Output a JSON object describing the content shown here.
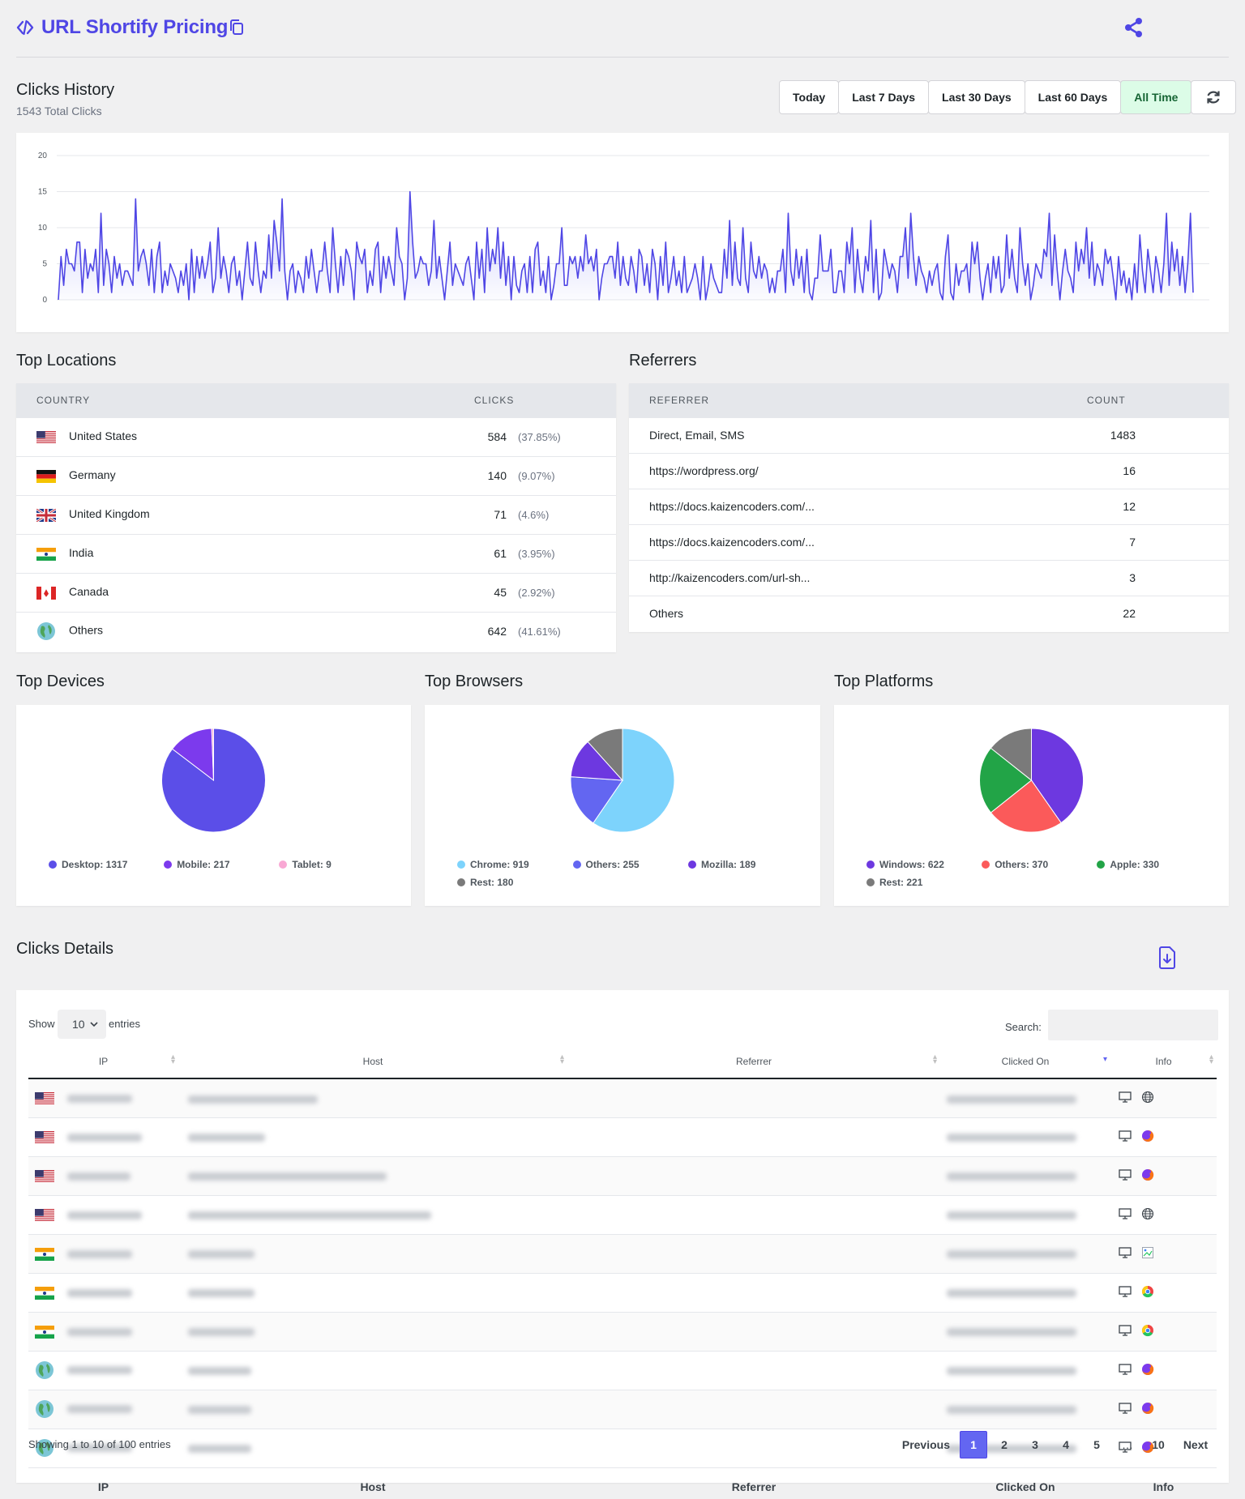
{
  "header": {
    "title": "URL Shortify Pricing"
  },
  "clicks_history": {
    "title": "Clicks History",
    "total": "1543 Total Clicks",
    "ranges": [
      "Today",
      "Last 7 Days",
      "Last 30 Days",
      "Last 60 Days",
      "All Time"
    ],
    "active_range": "All Time"
  },
  "chart_data": {
    "type": "area",
    "ylim": [
      0,
      20
    ],
    "yticks": [
      "0",
      "5",
      "10",
      "15",
      "20"
    ],
    "line_color": "#4f46e5",
    "values": [
      0,
      6,
      2,
      7,
      5,
      5,
      4,
      8,
      8,
      1,
      7,
      3,
      5,
      4,
      7,
      1,
      12,
      2,
      7,
      5,
      1,
      6,
      3,
      5,
      2,
      4,
      4,
      3,
      2,
      14,
      4,
      6,
      7,
      5,
      2,
      7,
      1,
      6,
      8,
      1,
      4,
      2,
      5,
      4,
      3,
      1,
      4,
      2,
      5,
      0,
      7,
      1,
      6,
      3,
      6,
      3,
      5,
      8,
      1,
      3,
      10,
      3,
      6,
      4,
      1,
      5,
      6,
      2,
      4,
      0,
      4,
      8,
      3,
      2,
      8,
      4,
      1,
      4,
      3,
      9,
      3,
      11,
      8,
      4,
      14,
      4,
      0,
      4,
      5,
      1,
      4,
      3,
      1,
      6,
      3,
      7,
      4,
      1,
      4,
      4,
      8,
      4,
      1,
      10,
      5,
      1,
      6,
      2,
      7,
      6,
      4,
      0,
      8,
      6,
      5,
      7,
      1,
      4,
      2,
      7,
      8,
      1,
      6,
      3,
      6,
      4,
      2,
      10,
      6,
      5,
      0,
      3,
      15,
      8,
      3,
      4,
      6,
      5,
      5,
      2,
      4,
      11,
      3,
      6,
      3,
      0,
      4,
      8,
      2,
      5,
      4,
      3,
      2,
      5,
      6,
      3,
      0,
      8,
      3,
      7,
      1,
      10,
      4,
      7,
      5,
      10,
      3,
      8,
      2,
      6,
      0,
      6,
      2,
      1,
      4,
      5,
      1,
      6,
      1,
      7,
      8,
      2,
      4,
      1,
      6,
      0,
      2,
      5,
      5,
      10,
      2,
      2,
      6,
      5,
      6,
      3,
      6,
      4,
      9,
      5,
      6,
      4,
      7,
      0,
      3,
      5,
      5,
      6,
      6,
      3,
      8,
      2,
      6,
      3,
      2,
      6,
      4,
      1,
      7,
      6,
      2,
      5,
      1,
      7,
      5,
      0,
      6,
      2,
      8,
      1,
      3,
      6,
      2,
      4,
      1,
      6,
      1,
      2,
      3,
      5,
      3,
      0,
      6,
      0,
      2,
      5,
      3,
      2,
      1,
      1,
      7,
      3,
      11,
      2,
      8,
      3,
      2,
      10,
      3,
      1,
      8,
      4,
      3,
      6,
      3,
      5,
      4,
      1,
      3,
      1,
      4,
      4,
      7,
      1,
      12,
      4,
      2,
      7,
      3,
      6,
      1,
      7,
      1,
      0,
      3,
      3,
      9,
      4,
      4,
      4,
      7,
      1,
      1,
      4,
      4,
      1,
      8,
      5,
      10,
      1,
      7,
      3,
      1,
      6,
      4,
      11,
      1,
      7,
      0,
      1,
      7,
      5,
      3,
      5,
      4,
      1,
      6,
      6,
      10,
      3,
      12,
      6,
      2,
      6,
      4,
      3,
      1,
      4,
      2,
      4,
      5,
      1,
      0,
      6,
      9,
      1,
      0,
      5,
      2,
      4,
      4,
      5,
      1,
      8,
      5,
      8,
      3,
      0,
      3,
      5,
      1,
      6,
      3,
      6,
      1,
      2,
      9,
      3,
      7,
      3,
      1,
      10,
      5,
      2,
      5,
      0,
      2,
      5,
      4,
      3,
      7,
      6,
      12,
      2,
      9,
      4,
      0,
      4,
      7,
      4,
      3,
      1,
      8,
      4,
      7,
      5,
      10,
      3,
      8,
      2,
      5,
      4,
      2,
      7,
      5,
      6,
      3,
      0,
      6,
      2,
      4,
      1,
      3,
      0,
      5,
      1,
      9,
      4,
      1,
      7,
      4,
      1,
      6,
      4,
      1,
      5,
      12,
      2,
      8,
      4,
      7,
      2,
      6,
      1,
      5,
      12,
      1
    ]
  },
  "locations": {
    "title": "Top Locations",
    "col_country": "COUNTRY",
    "col_clicks": "CLICKS",
    "rows": [
      {
        "name": "United States",
        "clicks": "584",
        "pct": "(37.85%)",
        "flag": "us-flag-icon"
      },
      {
        "name": "Germany",
        "clicks": "140",
        "pct": "(9.07%)",
        "flag": "de-flag-icon"
      },
      {
        "name": "United Kingdom",
        "clicks": "71",
        "pct": "(4.6%)",
        "flag": "gb-flag-icon"
      },
      {
        "name": "India",
        "clicks": "61",
        "pct": "(3.95%)",
        "flag": "in-flag-icon"
      },
      {
        "name": "Canada",
        "clicks": "45",
        "pct": "(2.92%)",
        "flag": "ca-flag-icon"
      },
      {
        "name": "Others",
        "clicks": "642",
        "pct": "(41.61%)",
        "flag": "globe-icon"
      }
    ]
  },
  "referrers": {
    "title": "Referrers",
    "col_referrer": "REFERRER",
    "col_count": "COUNT",
    "rows": [
      {
        "name": "Direct, Email, SMS",
        "count": "1483"
      },
      {
        "name": "https://wordpress.org/",
        "count": "16"
      },
      {
        "name": "https://docs.kaizencoders.com/...",
        "count": "12"
      },
      {
        "name": "https://docs.kaizencoders.com/...",
        "count": "7"
      },
      {
        "name": "http://kaizencoders.com/url-sh...",
        "count": "3"
      },
      {
        "name": "Others",
        "count": "22"
      }
    ]
  },
  "pies": [
    {
      "title": "Top Devices",
      "slices": [
        {
          "label": "Desktop: 1317",
          "value": 1317,
          "color": "#5b4ee8"
        },
        {
          "label": "Mobile: 217",
          "value": 217,
          "color": "#7c3aed"
        },
        {
          "label": "Tablet: 9",
          "value": 9,
          "color": "#f9a8d4"
        }
      ]
    },
    {
      "title": "Top Browsers",
      "slices": [
        {
          "label": "Chrome: 919",
          "value": 919,
          "color": "#7dd3fc"
        },
        {
          "label": "Others: 255",
          "value": 255,
          "color": "#6366f1"
        },
        {
          "label": "Mozilla: 189",
          "value": 189,
          "color": "#6d38e0"
        },
        {
          "label": "Rest: 180",
          "value": 180,
          "color": "#7a7a7a"
        }
      ]
    },
    {
      "title": "Top Platforms",
      "slices": [
        {
          "label": "Windows: 622",
          "value": 622,
          "color": "#6d38e0"
        },
        {
          "label": "Others: 370",
          "value": 370,
          "color": "#fb5a5a"
        },
        {
          "label": "Apple: 330",
          "value": 330,
          "color": "#22a447"
        },
        {
          "label": "Rest: 221",
          "value": 221,
          "color": "#7a7a7a"
        }
      ]
    }
  ],
  "details": {
    "title": "Clicks Details",
    "show_label": "Show",
    "entries_value": "10",
    "entries_label": "entries",
    "search_label": "Search:",
    "columns": [
      "IP",
      "Host",
      "Referrer",
      "Clicked On",
      "Info"
    ],
    "rows": [
      {
        "flag": "us-flag-icon",
        "browser": "globe-icon"
      },
      {
        "flag": "us-flag-icon",
        "browser": "firefox-icon"
      },
      {
        "flag": "us-flag-icon",
        "browser": "firefox-icon"
      },
      {
        "flag": "us-flag-icon",
        "browser": "globe-icon"
      },
      {
        "flag": "in-flag-icon",
        "browser": "broken-image-icon"
      },
      {
        "flag": "in-flag-icon",
        "browser": "chrome-icon"
      },
      {
        "flag": "in-flag-icon",
        "browser": "chrome-icon"
      },
      {
        "flag": "globe-icon",
        "browser": "firefox-icon"
      },
      {
        "flag": "globe-icon",
        "browser": "firefox-icon"
      },
      {
        "flag": "globe-icon",
        "browser": "firefox-icon"
      }
    ],
    "info": "Showing 1 to 10 of 100 entries",
    "pagination": {
      "previous": "Previous",
      "pages": [
        "1",
        "2",
        "3",
        "4",
        "5",
        "…",
        "10"
      ],
      "current": "1",
      "next": "Next"
    }
  }
}
